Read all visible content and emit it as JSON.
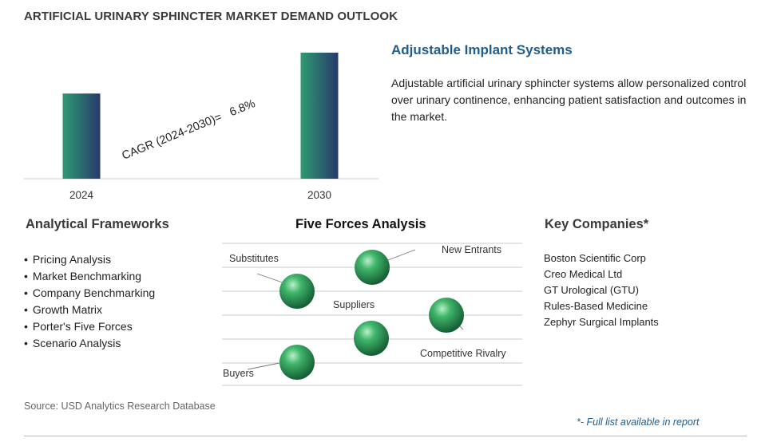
{
  "page": {
    "title": "ARTIFICIAL URINARY SPHINCTER MARKET DEMAND OUTLOOK",
    "source": "Source: USD Analytics Research Database",
    "footnote": "*- Full list available in report"
  },
  "chart_data": {
    "type": "bar",
    "categories": [
      "2024",
      "2030"
    ],
    "values": [
      1.0,
      1.48
    ],
    "annotation": "CAGR (2024-2030)=   6.8%",
    "bar_gradient": [
      "#2e9a72",
      "#273a6b"
    ]
  },
  "segment": {
    "title": "Adjustable Implant Systems",
    "description": "Adjustable artificial urinary sphincter systems allow personalized control over urinary continence, enhancing patient satisfaction and outcomes in the market."
  },
  "frameworks": {
    "heading": "Analytical Frameworks",
    "items": [
      "Pricing Analysis",
      "Market Benchmarking",
      "Company Benchmarking",
      "Growth Matrix",
      "Porter's Five Forces",
      "Scenario Analysis"
    ]
  },
  "five_forces": {
    "heading": "Five Forces Analysis",
    "labels": {
      "substitutes": "Substitutes",
      "new_entrants": "New Entrants",
      "suppliers": "Suppliers",
      "competitive_rivalry": "Competitive Rivalry",
      "buyers": "Buyers"
    }
  },
  "companies": {
    "heading": "Key Companies*",
    "items": [
      "Boston Scientific Corp",
      "Creo Medical Ltd",
      "GT Urological (GTU)",
      "Rules-Based Medicine",
      "Zephyr Surgical Implants"
    ]
  }
}
